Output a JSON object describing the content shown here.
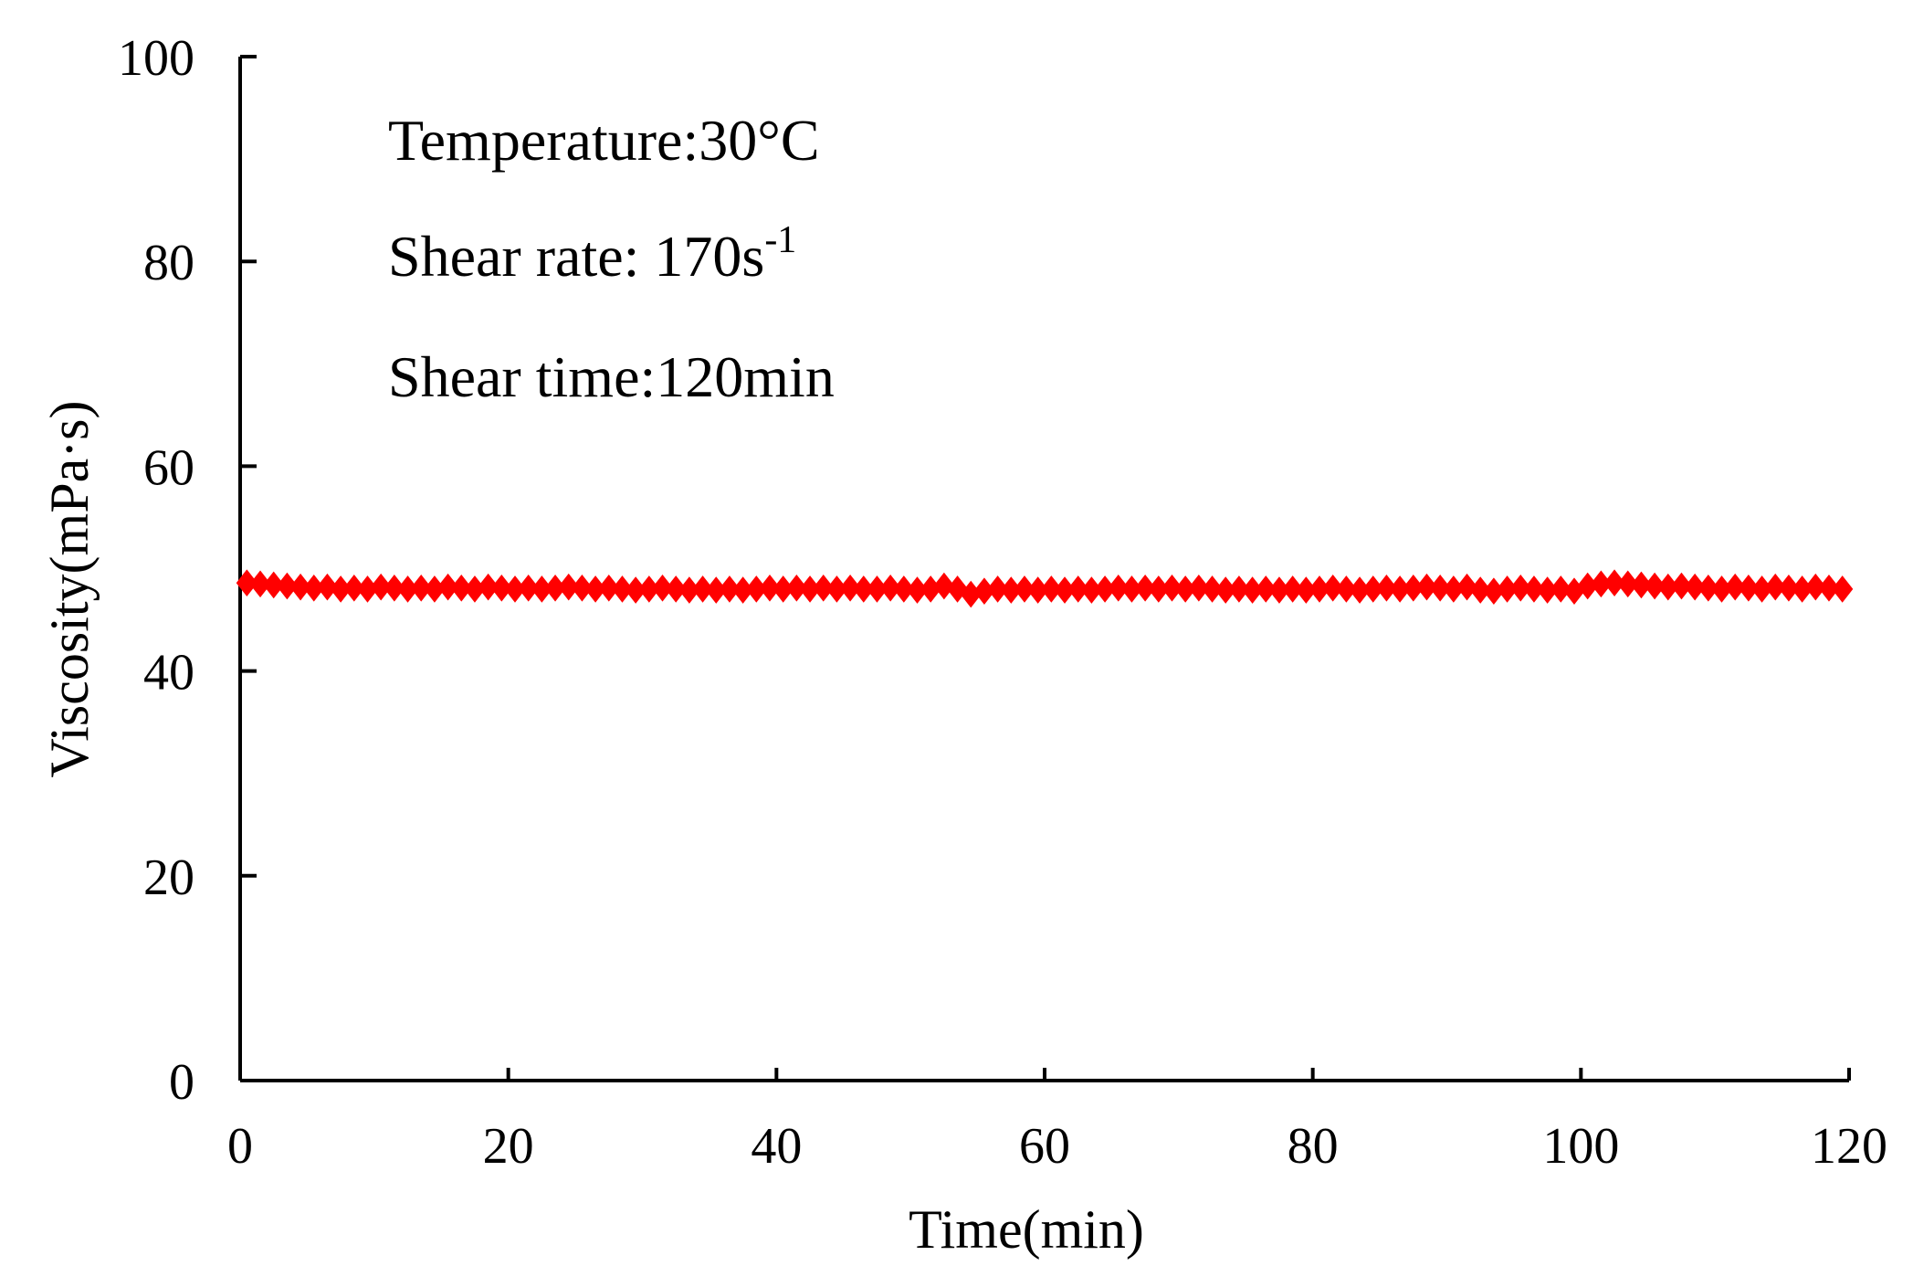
{
  "chart_data": {
    "type": "scatter",
    "title": "",
    "xlabel": "Time(min)",
    "ylabel": "Viscosity(mPa·s)",
    "xlim": [
      0,
      120
    ],
    "ylim": [
      0,
      100
    ],
    "x_ticks": [
      "0",
      "20",
      "40",
      "60",
      "80",
      "100",
      "120"
    ],
    "y_ticks": [
      "0",
      "20",
      "40",
      "60",
      "80",
      "100"
    ],
    "grid": false,
    "annotations": {
      "temperature": "Temperature:30°C",
      "shear_rate_prefix": "Shear rate: 170s",
      "shear_rate_superscript": "-1",
      "shear_time": "Shear time:120min"
    },
    "series": [
      {
        "name": "Viscosity",
        "color": "#ff0000",
        "marker": "diamond",
        "x": [
          0.5,
          1.5,
          2.5,
          3.5,
          4.5,
          5.5,
          6.5,
          7.5,
          8.5,
          9.5,
          10.5,
          11.5,
          12.5,
          13.5,
          14.5,
          15.5,
          16.5,
          17.5,
          18.5,
          19.5,
          20.5,
          21.5,
          22.5,
          23.5,
          24.5,
          25.5,
          26.5,
          27.5,
          28.5,
          29.5,
          30.5,
          31.5,
          32.5,
          33.5,
          34.5,
          35.5,
          36.5,
          37.5,
          38.5,
          39.5,
          40.5,
          41.5,
          42.5,
          43.5,
          44.5,
          45.5,
          46.5,
          47.5,
          48.5,
          49.5,
          50.5,
          51.5,
          52.5,
          53.5,
          54.5,
          55.5,
          56.5,
          57.5,
          58.5,
          59.5,
          60.5,
          61.5,
          62.5,
          63.5,
          64.5,
          65.5,
          66.5,
          67.5,
          68.5,
          69.5,
          70.5,
          71.5,
          72.5,
          73.5,
          74.5,
          75.5,
          76.5,
          77.5,
          78.5,
          79.5,
          80.5,
          81.5,
          82.5,
          83.5,
          84.5,
          85.5,
          86.5,
          87.5,
          88.5,
          89.5,
          90.5,
          91.5,
          92.5,
          93.5,
          94.5,
          95.5,
          96.5,
          97.5,
          98.5,
          99.5,
          100.5,
          101.5,
          102.5,
          103.5,
          104.5,
          105.5,
          106.5,
          107.5,
          108.5,
          109.5,
          110.5,
          111.5,
          112.5,
          113.5,
          114.5,
          115.5,
          116.5,
          117.5,
          118.5,
          119.5
        ],
        "y": [
          48.6,
          48.5,
          48.4,
          48.3,
          48.2,
          48.1,
          48.2,
          48.0,
          48.1,
          48.0,
          48.2,
          48.1,
          48.0,
          48.1,
          48.0,
          48.2,
          48.1,
          48.0,
          48.2,
          48.1,
          48.0,
          48.1,
          48.0,
          48.1,
          48.2,
          48.1,
          48.0,
          48.1,
          48.0,
          47.9,
          48.0,
          48.1,
          48.0,
          47.9,
          48.0,
          47.9,
          48.0,
          47.9,
          48.0,
          48.1,
          48.0,
          48.1,
          48.0,
          48.1,
          48.0,
          48.1,
          48.0,
          48.0,
          48.1,
          48.0,
          47.9,
          48.0,
          48.3,
          48.0,
          47.5,
          47.8,
          48.0,
          47.9,
          48.0,
          47.9,
          48.0,
          47.9,
          48.0,
          47.9,
          48.0,
          48.1,
          48.0,
          48.1,
          48.0,
          48.1,
          48.0,
          48.1,
          48.0,
          47.9,
          48.0,
          47.9,
          48.0,
          47.9,
          48.0,
          47.9,
          48.0,
          48.1,
          48.0,
          47.9,
          48.0,
          48.1,
          48.0,
          48.1,
          48.2,
          48.1,
          48.0,
          48.2,
          47.9,
          47.8,
          48.0,
          48.1,
          48.0,
          47.9,
          48.0,
          47.8,
          48.3,
          48.5,
          48.6,
          48.5,
          48.4,
          48.3,
          48.2,
          48.3,
          48.2,
          48.1,
          48.0,
          48.2,
          48.1,
          48.0,
          48.2,
          48.1,
          48.0,
          48.2,
          48.1,
          48.0
        ]
      }
    ]
  }
}
